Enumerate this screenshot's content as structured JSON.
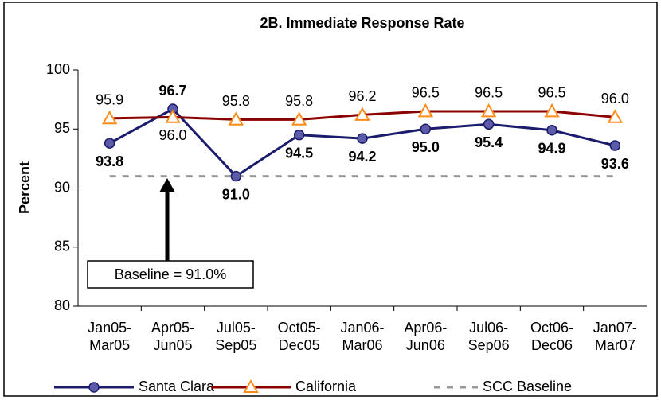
{
  "chart_data": {
    "type": "line",
    "title": "2B. Immediate Response Rate",
    "y_label": "Percent",
    "categories": [
      "Jan05-Mar05",
      "Apr05-Jun05",
      "Jul05-Sep05",
      "Oct05-Dec05",
      "Jan06-Mar06",
      "Apr06-Jun06",
      "Jul06-Sep06",
      "Oct06-Dec06",
      "Jan07-Mar07"
    ],
    "series": [
      {
        "name": "Santa Clara",
        "color": "#1c1c6e",
        "marker": "circle",
        "marker_color": "#5b5ba8",
        "values": [
          93.8,
          96.7,
          91.0,
          94.5,
          94.2,
          95.0,
          95.4,
          94.9,
          93.6
        ],
        "value_labels": [
          "93.8",
          "96.7",
          "91.0",
          "94.5",
          "94.2",
          "95.0",
          "95.4",
          "94.9",
          "93.6"
        ]
      },
      {
        "name": "California",
        "color": "#8b0000",
        "marker": "triangle",
        "marker_color": "#ff8c1a",
        "values": [
          95.9,
          96.0,
          95.8,
          95.8,
          96.2,
          96.5,
          96.5,
          96.5,
          96.0
        ],
        "value_labels": [
          "95.9",
          "96.0",
          "95.8",
          "95.8",
          "96.2",
          "96.5",
          "96.5",
          "96.5",
          "96.0"
        ]
      },
      {
        "name": "SCC Baseline",
        "color": "#999999",
        "dashed": true,
        "values": [
          91.0,
          91.0,
          91.0,
          91.0,
          91.0,
          91.0,
          91.0,
          91.0,
          91.0
        ]
      }
    ],
    "annotation": "Baseline = 91.0%",
    "ylim": [
      80,
      100
    ],
    "yticks": [
      80,
      85,
      90,
      95,
      100
    ],
    "grid": false,
    "legend": "bottom"
  }
}
